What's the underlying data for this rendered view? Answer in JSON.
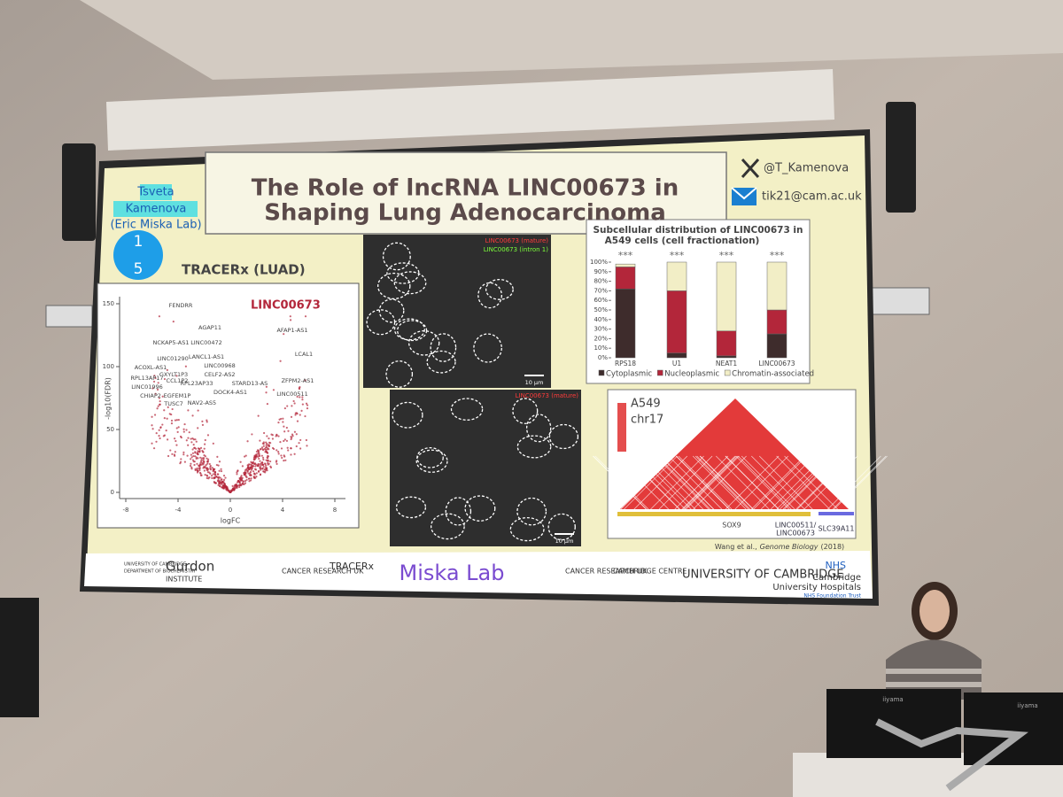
{
  "slide": {
    "author": [
      "Tsveta",
      "Kamenova"
    ],
    "lab": "(Eric Miska Lab)",
    "badge": [
      "1",
      "5"
    ],
    "title": [
      "The Role of lncRNA LINC00673 in",
      "Shaping Lung Adenocarcinoma"
    ],
    "twitter": "@T_Kamenova",
    "email": "tik21@cam.ac.uk",
    "volcano": {
      "heading": "TRACERx (LUAD)",
      "highlight": "LINC00673",
      "x_label": "logFC",
      "y_label": "-log10(FDR)",
      "xticks": [
        -8,
        -4,
        0,
        4,
        8
      ],
      "yticks": [
        0,
        50,
        100,
        150
      ],
      "genes": [
        "FENDRR",
        "AGAP11",
        "NCKAP5-AS1",
        "LINC00472",
        "AFAP1-AS1",
        "LINC01290",
        "LANCL1-AS1",
        "LCAL1",
        "ACOXL-AS1",
        "LINC00968",
        "GXYLT1P3",
        "CELF2-AS2",
        "RPL13AP17",
        "CCL1P2",
        "RPL23AP33",
        "STARD13-AS",
        "ZFPM2-AS1",
        "LINC01996",
        "CHIAP2",
        "EGFEM1P",
        "DOCK4-AS1",
        "LINC00511",
        "TUSC7",
        "NAV2-AS5"
      ]
    },
    "microscopy": [
      {
        "labels": [
          "LINC00673 (mature)",
          "LINC00673 (intron 1)"
        ],
        "scale": "10 µm"
      },
      {
        "labels": [
          "LINC00673 (mature)"
        ],
        "scale": "10 µm"
      }
    ],
    "fractionation": {
      "title": [
        "Subcellular distribution of LINC00673 in",
        "A549 cells (cell fractionation)"
      ],
      "categories": [
        "RPS18",
        "U1",
        "NEAT1",
        "LINC00673"
      ],
      "significance": [
        "***",
        "***",
        "***",
        "***"
      ],
      "ylim": [
        0,
        100
      ],
      "yticks": [
        {
          "value": 0,
          "label": "0%"
        },
        {
          "value": 10,
          "label": "10%"
        },
        {
          "value": 20,
          "label": "20%"
        },
        {
          "value": 30,
          "label": "30%"
        },
        {
          "value": 40,
          "label": "40%"
        },
        {
          "value": 50,
          "label": "50%"
        },
        {
          "value": 60,
          "label": "60%"
        },
        {
          "value": 70,
          "label": "70%"
        },
        {
          "value": 80,
          "label": "80%"
        },
        {
          "value": 90,
          "label": "90%"
        },
        {
          "value": 100,
          "label": "100%"
        }
      ],
      "series": [
        {
          "name": "Cytoplasmic",
          "color": "#3e2c2c",
          "values": [
            72,
            5,
            2,
            25
          ]
        },
        {
          "name": "Nucleoplasmic",
          "color": "#b3263a",
          "values": [
            23,
            65,
            26,
            25
          ]
        },
        {
          "name": "Chromatin-associated",
          "color": "#f2eec6",
          "values": [
            3,
            30,
            72,
            50
          ]
        }
      ]
    },
    "hic": {
      "labels": [
        "A549",
        "chr17"
      ],
      "gene": "SOX9",
      "locus": [
        "LINC00511/",
        "LINC00673"
      ],
      "gene2": "SLC39A11"
    },
    "citation": {
      "authors": "Wang et al.,",
      "journal": "Genome Biology",
      "year": "(2018)"
    },
    "logos": [
      "UNIVERSITY OF CAMBRIDGE",
      "DEPARTMENT OF BIOCHEMISTRY",
      "Gurdon",
      "INSTITUTE",
      "CANCER RESEARCH UK",
      "TRACERx",
      "Miska Lab",
      "CANCER RESEARCH UK",
      "CAMBRIDGE CENTRE",
      "UNIVERSITY OF CAMBRIDGE",
      "NHS",
      "Cambridge",
      "University Hospitals",
      "NHS Foundation Trust"
    ]
  },
  "room": {
    "monitor_brand": [
      "iiyama",
      "iiyama"
    ]
  }
}
